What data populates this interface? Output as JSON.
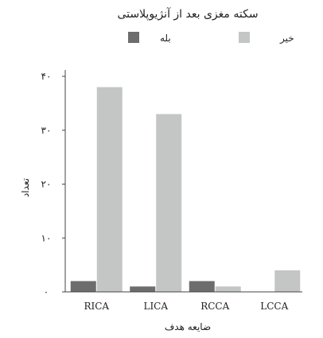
{
  "chart_data": {
    "type": "bar",
    "title": "سکته مغزی بعد از آنژیوپلاستی",
    "xlabel": "ضایعه هدف",
    "ylabel": "تعداد",
    "categories": [
      "RICA",
      "LICA",
      "RCCA",
      "LCCA"
    ],
    "series": [
      {
        "name": "بله",
        "values": [
          2,
          1,
          2,
          0
        ],
        "color": "#6d6d6d"
      },
      {
        "name": "خیر",
        "values": [
          38,
          33,
          1,
          4
        ],
        "color": "#c4c6c6"
      }
    ],
    "ylim": [
      0,
      40
    ],
    "yticks": [
      0,
      10,
      20,
      30,
      40
    ],
    "ytick_labels": [
      "۰",
      "۱۰",
      "۲۰",
      "۳۰",
      "۴۰"
    ],
    "legend_position": "top",
    "grid": false
  }
}
